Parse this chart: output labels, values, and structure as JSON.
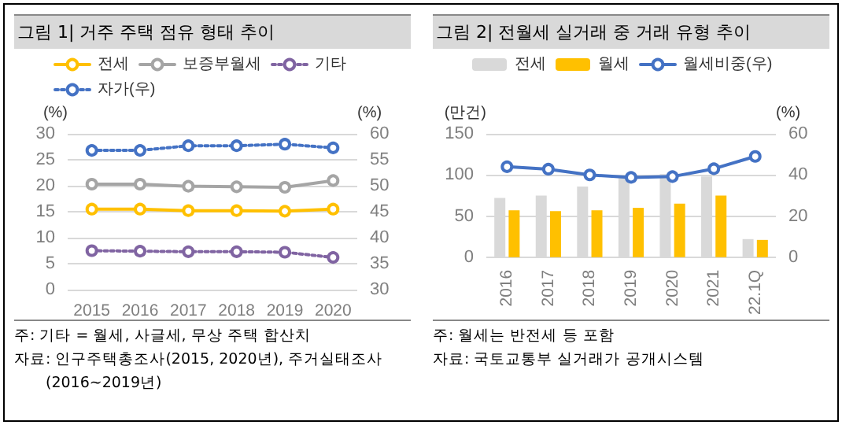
{
  "chart_data": [
    {
      "type": "line",
      "title": "그림 1| 거주 주택 점유 형태 추이",
      "ylabel": "(%)",
      "y2label": "(%)",
      "categories": [
        "2015",
        "2016",
        "2017",
        "2018",
        "2019",
        "2020"
      ],
      "series": [
        {
          "name": "전세",
          "color": "#ffc000",
          "line_style": "solid",
          "values": [
            15.5,
            15.5,
            15.2,
            15.2,
            15.1,
            15.5
          ]
        },
        {
          "name": "보증부월세",
          "color": "#a5a5a5",
          "line_style": "solid",
          "values": [
            20.3,
            20.3,
            19.9,
            19.8,
            19.7,
            21.0
          ]
        },
        {
          "name": "기타",
          "color": "#8064a2",
          "line_style": "dotted",
          "values": [
            7.5,
            7.4,
            7.3,
            7.3,
            7.2,
            6.2
          ]
        },
        {
          "name": "자가(우)",
          "color": "#4472c4",
          "line_style": "dotted",
          "axis": "y2",
          "values": [
            56.8,
            56.8,
            57.7,
            57.7,
            58.0,
            57.3
          ]
        }
      ],
      "ylim": [
        0,
        30
      ],
      "yticks": [
        0,
        5,
        10,
        15,
        20,
        25,
        30
      ],
      "y2lim": [
        30,
        60
      ],
      "y2ticks": [
        30,
        35,
        40,
        45,
        50,
        55,
        60
      ],
      "grid": "y",
      "legend": "top",
      "marker": "circle",
      "annotations": [
        "주: 기타 = 월세, 사글세, 무상 주택 합산치",
        "자료: 인구주택총조사(2015, 2020년), 주거실태조사",
        "(2016~2019년)"
      ]
    },
    {
      "type": "bar",
      "title": "그림 2| 전월세 실거래 중 거래 유형 추이",
      "ylabel": "(만건)",
      "y2label": "(%)",
      "categories": [
        "2016",
        "2017",
        "2018",
        "2019",
        "2020",
        "2021",
        "22.1Q"
      ],
      "series": [
        {
          "name": "전세",
          "color": "#d9d9d9",
          "values": [
            72,
            75,
            86,
            98,
            101,
            98,
            22
          ]
        },
        {
          "name": "월세",
          "color": "#ffc000",
          "values": [
            57,
            56,
            57,
            60,
            65,
            75,
            21
          ]
        },
        {
          "name": "월세비중(우)",
          "type": "line",
          "color": "#4472c4",
          "axis": "y2",
          "marker": "circle",
          "values": [
            44,
            42.8,
            40,
            38.8,
            39.2,
            43,
            49
          ]
        }
      ],
      "ylim": [
        0,
        150
      ],
      "yticks": [
        0,
        50,
        100,
        150
      ],
      "y2lim": [
        0,
        60
      ],
      "y2ticks": [
        0,
        20,
        40,
        60
      ],
      "grid": "y",
      "legend": "top",
      "annotations": [
        "주: 월세는 반전세 등 포함",
        "자료: 국토교통부 실거래가 공개시스템"
      ]
    }
  ]
}
